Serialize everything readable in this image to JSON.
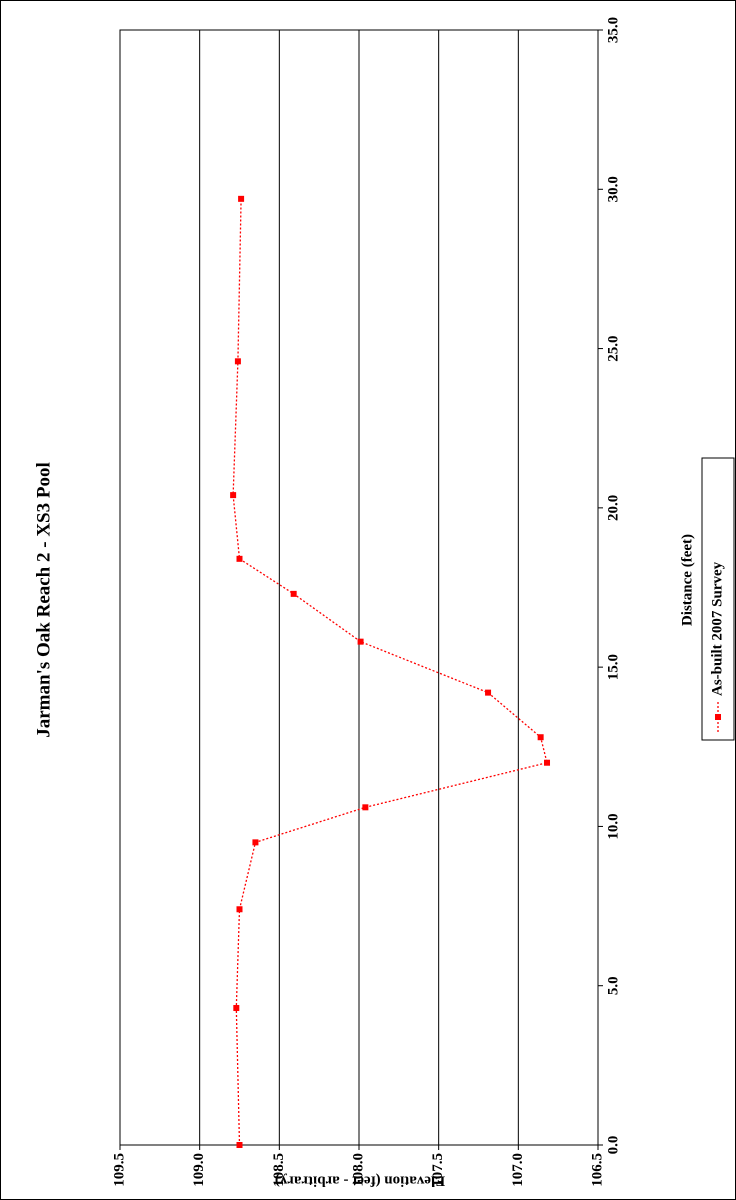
{
  "chart_data": {
    "type": "line",
    "title": "Jarman's Oak Reach 2 - XS3 Pool",
    "x_label": "Distance (feet)",
    "y_label": "Elevation (feet - arbitrary)",
    "x": [
      0.0,
      4.3,
      7.4,
      9.5,
      10.6,
      12.0,
      12.8,
      14.2,
      15.8,
      17.3,
      18.4,
      20.4,
      24.6,
      29.7
    ],
    "series": [
      {
        "name": "As-built 2007 Survey",
        "color": "#ff0000",
        "values": [
          108.75,
          108.77,
          108.75,
          108.65,
          107.96,
          106.82,
          106.86,
          107.19,
          107.99,
          108.41,
          108.75,
          108.79,
          108.76,
          108.74
        ]
      }
    ],
    "xlim": [
      0,
      35
    ],
    "xticks": [
      {
        "value": 0,
        "label": "0.0"
      },
      {
        "value": 5,
        "label": "5.0"
      },
      {
        "value": 10,
        "label": "10.0"
      },
      {
        "value": 15,
        "label": "15.0"
      },
      {
        "value": 20,
        "label": "20.0"
      },
      {
        "value": 25,
        "label": "25.0"
      },
      {
        "value": 30,
        "label": "30.0"
      },
      {
        "value": 35,
        "label": "35.0"
      }
    ],
    "ylim": [
      106.5,
      109.5
    ],
    "yticks": [
      106.5,
      {
        "value": 107,
        "label": "107.0"
      },
      107.5,
      {
        "value": 108,
        "label": "108.0"
      },
      108.5,
      {
        "value": 109,
        "label": "109.0"
      },
      109.5
    ],
    "grid": true,
    "legend": "bottom"
  }
}
